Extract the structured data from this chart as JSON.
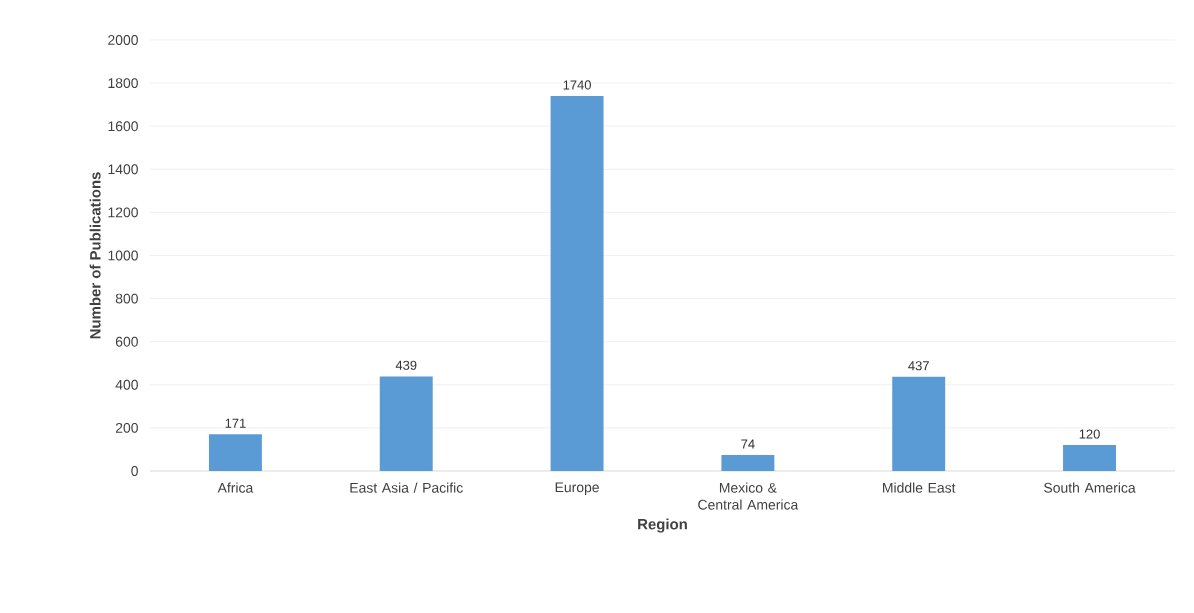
{
  "chart_data": {
    "type": "bar",
    "xlabel": "Region",
    "ylabel": "Number of Publications",
    "categories": [
      "Africa",
      "East Asia / Pacific",
      "Europe",
      "Mexico & Central America",
      "Middle East",
      "South America"
    ],
    "values": [
      171,
      439,
      1740,
      74,
      437,
      120
    ],
    "color": "#5b9bd5",
    "ylim": [
      0,
      2000
    ],
    "yticks": [
      0,
      200,
      400,
      600,
      800,
      1000,
      1200,
      1400,
      1600,
      1800,
      2000
    ],
    "grid": "y",
    "data_labels": true
  }
}
